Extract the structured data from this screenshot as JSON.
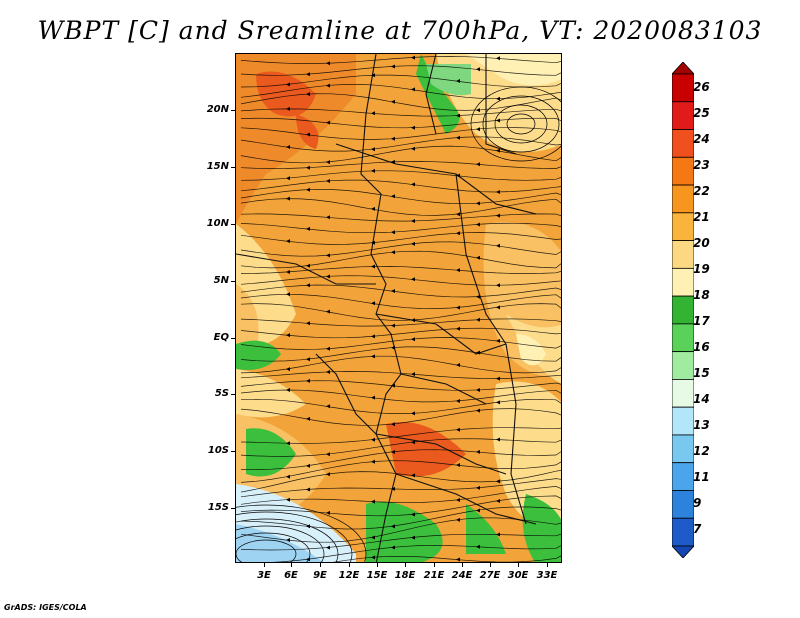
{
  "title": "WBPT [C] and Sreamline at 700hPa, VT: 2020083103",
  "footer": "GrADS: IGES/COLA",
  "axes": {
    "lat_labels": [
      "20N",
      "15N",
      "10N",
      "5N",
      "EQ",
      "5S",
      "10S",
      "15S"
    ],
    "lon_labels": [
      "3E",
      "6E",
      "9E",
      "12E",
      "15E",
      "18E",
      "21E",
      "24E",
      "27E",
      "30E",
      "33E"
    ]
  },
  "colorbar": {
    "labels": [
      "26",
      "25",
      "24",
      "23",
      "22",
      "21",
      "20",
      "19",
      "18",
      "17",
      "16",
      "15",
      "14",
      "13",
      "12",
      "11",
      "9",
      "7"
    ],
    "colors": [
      "#a50000",
      "#c80000",
      "#e11a1a",
      "#f0501e",
      "#f57814",
      "#f7961e",
      "#f9b43c",
      "#fdd882",
      "#fff0b4",
      "#32b432",
      "#5ad25a",
      "#a0eba0",
      "#e6fae6",
      "#b4e6fa",
      "#78c8f0",
      "#4ba5eb",
      "#2d82dc",
      "#1e5ac8",
      "#1446b4"
    ]
  },
  "palette": {
    "orange_main": "#f2a33a",
    "orange_light": "#f9c064",
    "orange_dark": "#ee8a2a",
    "red_orange": "#ea5a1e",
    "yellow": "#fddc8c",
    "pale_yellow": "#fff0b4",
    "green": "#3cbf3c",
    "light_green": "#7fd87f",
    "pale_blue": "#d8f0fa",
    "blue": "#9fd3f2",
    "line": "#000000"
  }
}
